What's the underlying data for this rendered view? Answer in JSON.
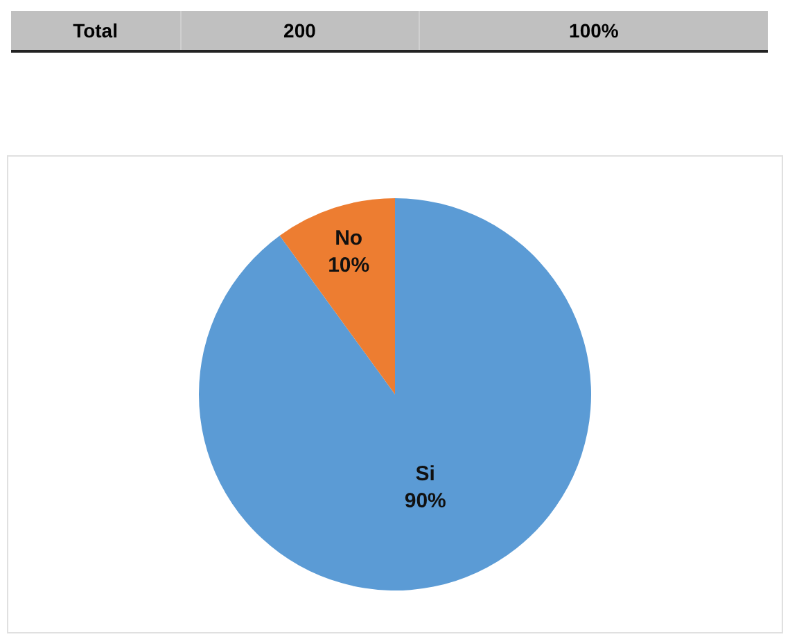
{
  "chart_data": {
    "type": "pie",
    "annotations": [
      "Total",
      "200",
      "100%"
    ],
    "categories": [
      "Si",
      "No"
    ],
    "values": [
      90,
      10
    ],
    "colors": [
      "#5b9bd5",
      "#ed7d31"
    ],
    "value_labels": [
      "90%",
      "10%"
    ]
  }
}
